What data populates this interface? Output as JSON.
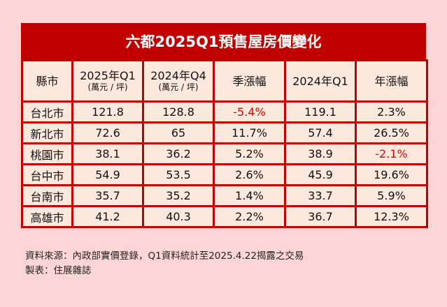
{
  "title": "六都2025Q1預售屋房價變化",
  "headers": [
    {
      "label": "縣市",
      "sub": ""
    },
    {
      "label": "2025年Q1",
      "sub": "(萬元 / 坪)"
    },
    {
      "label": "2024年Q4",
      "sub": "(萬元 / 坪)"
    },
    {
      "label": "季漲幅",
      "sub": ""
    },
    {
      "label": "2024年Q1",
      "sub": ""
    },
    {
      "label": "年漲幅",
      "sub": ""
    }
  ],
  "rows": [
    [
      "台北市",
      "121.8",
      "128.8",
      "-5.4%",
      "119.1",
      "2.3%"
    ],
    [
      "新北市",
      "72.6",
      "65",
      "11.7%",
      "57.4",
      "26.5%"
    ],
    [
      "桃園市",
      "38.1",
      "36.2",
      "5.2%",
      "38.9",
      "-2.1%"
    ],
    [
      "台中市",
      "54.9",
      "53.5",
      "2.6%",
      "45.9",
      "19.6%"
    ],
    [
      "台南市",
      "35.7",
      "35.2",
      "1.4%",
      "33.7",
      "5.9%"
    ],
    [
      "高雄市",
      "41.2",
      "40.3",
      "2.2%",
      "36.7",
      "12.3%"
    ]
  ],
  "footer": {
    "source": "資料來源：內政部實價登錄，Q1資料統計至2025.4.22揭露之交易",
    "maker": "製表：住展雜誌"
  },
  "colors": {
    "accent": "#c00000",
    "negative": "#e00000",
    "background": "#fdd5d7",
    "cell": "#fde8dd"
  }
}
